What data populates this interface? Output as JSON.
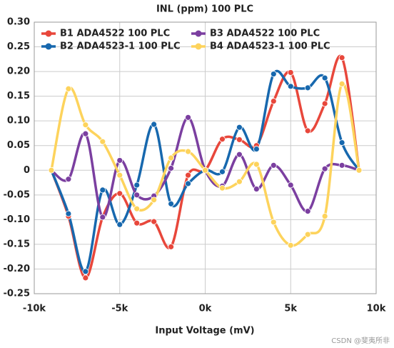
{
  "chart_data": {
    "type": "line",
    "title": "INL (ppm) 100 PLC",
    "xlabel": "Input Voltage (mV)",
    "watermark": "CSDN @斐夷所非",
    "x": [
      -9000,
      -8000,
      -7000,
      -6000,
      -5000,
      -4000,
      -3000,
      -2000,
      -1000,
      0,
      1000,
      2000,
      3000,
      4000,
      5000,
      6000,
      7000,
      8000,
      9000
    ],
    "series": [
      {
        "name": "B1 ADA4522 100 PLC",
        "color": "#e8473b",
        "values": [
          0,
          -0.093,
          -0.218,
          -0.095,
          -0.047,
          -0.107,
          -0.104,
          -0.155,
          -0.01,
          0,
          0.063,
          0.062,
          0.05,
          0.14,
          0.198,
          0.08,
          0.135,
          0.228,
          0
        ]
      },
      {
        "name": "B2 ADA4523-1 100 PLC",
        "color": "#1768ae",
        "values": [
          0,
          -0.088,
          -0.205,
          -0.04,
          -0.11,
          -0.03,
          0.093,
          -0.068,
          -0.027,
          0,
          -0.003,
          0.087,
          0.043,
          0.195,
          0.17,
          0.167,
          0.187,
          0.056,
          0
        ]
      },
      {
        "name": "B3 ADA4522 100 PLC",
        "color": "#7b3fa0",
        "values": [
          0,
          -0.018,
          0.074,
          -0.095,
          0.02,
          -0.05,
          -0.052,
          0.004,
          0.107,
          0,
          -0.032,
          0.032,
          -0.038,
          0.01,
          -0.03,
          -0.083,
          0.003,
          0.01,
          0
        ]
      },
      {
        "name": "B4 ADA4523-1 100 PLC",
        "color": "#fdd35c",
        "values": [
          0,
          0.165,
          0.092,
          0.058,
          -0.01,
          -0.078,
          -0.06,
          0.025,
          0.038,
          0,
          -0.036,
          -0.023,
          0.012,
          -0.105,
          -0.152,
          -0.13,
          -0.093,
          0.175,
          0
        ]
      }
    ],
    "xlim": [
      -10000,
      10000
    ],
    "xticks": [
      {
        "value": -10000,
        "label": "-10k"
      },
      {
        "value": -5000,
        "label": "-5k"
      },
      {
        "value": 0,
        "label": "0k"
      },
      {
        "value": 5000,
        "label": "5k"
      },
      {
        "value": 10000,
        "label": "10k"
      }
    ],
    "ylim": [
      -0.25,
      0.3
    ],
    "yticks": [
      {
        "value": -0.25,
        "label": "-0.25"
      },
      {
        "value": -0.2,
        "label": "-0.20"
      },
      {
        "value": -0.15,
        "label": "-0.15"
      },
      {
        "value": -0.1,
        "label": "-0.10"
      },
      {
        "value": -0.05,
        "label": "-0.05"
      },
      0,
      {
        "value": 0.05,
        "label": "0.05"
      },
      {
        "value": 0.1,
        "label": "0.10"
      },
      {
        "value": 0.15,
        "label": "0.15"
      },
      {
        "value": 0.2,
        "label": "0.20"
      },
      {
        "value": 0.25,
        "label": "0.25"
      },
      {
        "value": 0.3,
        "label": "0.30"
      }
    ],
    "grid": true,
    "legend": "top"
  }
}
